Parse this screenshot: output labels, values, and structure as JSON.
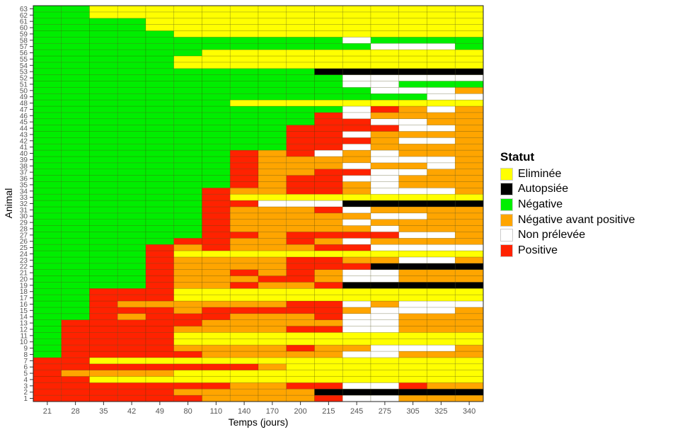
{
  "chart_data": {
    "type": "heatmap",
    "xlabel": "Temps (jours)",
    "ylabel": "Animal",
    "x": [
      "21",
      "28",
      "35",
      "42",
      "49",
      "80",
      "110",
      "140",
      "170",
      "200",
      "215",
      "245",
      "275",
      "305",
      "325",
      "340"
    ],
    "y": [
      "1",
      "2",
      "3",
      "4",
      "5",
      "6",
      "7",
      "8",
      "9",
      "10",
      "11",
      "12",
      "13",
      "14",
      "15",
      "16",
      "17",
      "18",
      "19",
      "20",
      "21",
      "22",
      "23",
      "24",
      "25",
      "26",
      "27",
      "28",
      "29",
      "30",
      "31",
      "32",
      "33",
      "34",
      "35",
      "36",
      "37",
      "38",
      "39",
      "40",
      "41",
      "42",
      "43",
      "44",
      "45",
      "46",
      "47",
      "48",
      "49",
      "50",
      "51",
      "52",
      "53",
      "54",
      "55",
      "56",
      "57",
      "58",
      "59",
      "60",
      "61",
      "62",
      "63"
    ],
    "legend": {
      "title": "Statut",
      "position": "right",
      "levels": [
        {
          "label": "Eliminée",
          "color": "#FFFF00"
        },
        {
          "label": "Autopsiée",
          "color": "#000000"
        },
        {
          "label": "Négative",
          "color": "#00EE00"
        },
        {
          "label": "Négative avant positive",
          "color": "#FFA500"
        },
        {
          "label": "Non prélevée",
          "color": "#FFFFFF"
        },
        {
          "label": "Positive",
          "color": "#FF2200"
        }
      ]
    },
    "z": [
      [
        5,
        5,
        5,
        5,
        5,
        5,
        3,
        3,
        3,
        3,
        5,
        4,
        4,
        3,
        3,
        3
      ],
      [
        5,
        5,
        5,
        5,
        5,
        3,
        3,
        3,
        3,
        3,
        1,
        1,
        1,
        1,
        1,
        1
      ],
      [
        5,
        5,
        5,
        5,
        5,
        5,
        5,
        3,
        3,
        5,
        5,
        4,
        4,
        5,
        3,
        3
      ],
      [
        5,
        5,
        0,
        0,
        0,
        0,
        0,
        0,
        0,
        0,
        0,
        0,
        0,
        0,
        0,
        0
      ],
      [
        5,
        3,
        3,
        3,
        3,
        0,
        0,
        0,
        0,
        0,
        0,
        0,
        0,
        0,
        0,
        0
      ],
      [
        5,
        5,
        5,
        5,
        5,
        5,
        5,
        5,
        3,
        0,
        0,
        0,
        0,
        0,
        0,
        0
      ],
      [
        5,
        5,
        0,
        0,
        0,
        0,
        0,
        0,
        0,
        0,
        0,
        0,
        0,
        0,
        0,
        0
      ],
      [
        2,
        5,
        5,
        5,
        5,
        5,
        3,
        3,
        3,
        3,
        3,
        4,
        4,
        3,
        3,
        3
      ],
      [
        2,
        5,
        5,
        5,
        5,
        3,
        3,
        3,
        3,
        5,
        3,
        3,
        4,
        4,
        4,
        3
      ],
      [
        2,
        5,
        5,
        5,
        5,
        0,
        0,
        0,
        0,
        0,
        0,
        0,
        0,
        0,
        0,
        0
      ],
      [
        2,
        5,
        5,
        5,
        5,
        0,
        0,
        0,
        0,
        0,
        0,
        0,
        0,
        0,
        0,
        0
      ],
      [
        2,
        5,
        5,
        5,
        5,
        3,
        3,
        3,
        3,
        5,
        5,
        4,
        4,
        3,
        3,
        3
      ],
      [
        2,
        5,
        5,
        5,
        5,
        5,
        3,
        3,
        3,
        3,
        3,
        4,
        4,
        3,
        3,
        3
      ],
      [
        2,
        2,
        5,
        3,
        5,
        5,
        5,
        3,
        3,
        3,
        5,
        4,
        4,
        3,
        3,
        3
      ],
      [
        2,
        2,
        5,
        5,
        5,
        3,
        5,
        5,
        5,
        5,
        5,
        3,
        4,
        4,
        4,
        3
      ],
      [
        2,
        2,
        5,
        3,
        3,
        3,
        3,
        3,
        3,
        5,
        5,
        4,
        3,
        4,
        4,
        4
      ],
      [
        2,
        2,
        5,
        5,
        5,
        0,
        0,
        0,
        0,
        0,
        0,
        0,
        0,
        0,
        0,
        0
      ],
      [
        2,
        2,
        5,
        5,
        5,
        0,
        0,
        0,
        0,
        0,
        0,
        0,
        0,
        0,
        0,
        0
      ],
      [
        2,
        2,
        2,
        2,
        5,
        3,
        3,
        5,
        3,
        3,
        5,
        1,
        1,
        1,
        1,
        1
      ],
      [
        2,
        2,
        2,
        2,
        5,
        3,
        3,
        3,
        5,
        5,
        3,
        4,
        4,
        3,
        3,
        3
      ],
      [
        2,
        2,
        2,
        2,
        5,
        3,
        3,
        5,
        3,
        5,
        3,
        4,
        4,
        3,
        3,
        3
      ],
      [
        2,
        2,
        2,
        2,
        5,
        3,
        3,
        3,
        3,
        5,
        5,
        5,
        1,
        1,
        1,
        1
      ],
      [
        2,
        2,
        2,
        2,
        5,
        3,
        3,
        3,
        3,
        5,
        5,
        3,
        3,
        4,
        4,
        3
      ],
      [
        2,
        2,
        2,
        2,
        5,
        0,
        0,
        0,
        0,
        0,
        0,
        0,
        0,
        0,
        0,
        0
      ],
      [
        2,
        2,
        2,
        2,
        5,
        3,
        5,
        3,
        3,
        3,
        5,
        5,
        4,
        4,
        4,
        4
      ],
      [
        2,
        2,
        2,
        2,
        2,
        5,
        5,
        3,
        3,
        5,
        3,
        4,
        3,
        3,
        3,
        3
      ],
      [
        2,
        2,
        2,
        2,
        2,
        2,
        5,
        5,
        3,
        5,
        5,
        5,
        5,
        4,
        4,
        3
      ],
      [
        2,
        2,
        2,
        2,
        2,
        2,
        5,
        3,
        3,
        3,
        3,
        3,
        4,
        3,
        3,
        3
      ],
      [
        2,
        2,
        2,
        2,
        2,
        2,
        5,
        3,
        3,
        3,
        3,
        4,
        3,
        3,
        3,
        3
      ],
      [
        2,
        2,
        2,
        2,
        2,
        2,
        5,
        3,
        3,
        3,
        3,
        3,
        4,
        4,
        3,
        3
      ],
      [
        2,
        2,
        2,
        2,
        2,
        2,
        5,
        3,
        3,
        3,
        5,
        4,
        3,
        3,
        3,
        3
      ],
      [
        2,
        2,
        2,
        2,
        2,
        2,
        5,
        5,
        4,
        4,
        4,
        1,
        1,
        1,
        1,
        1
      ],
      [
        2,
        2,
        2,
        2,
        2,
        2,
        5,
        0,
        0,
        0,
        0,
        0,
        0,
        0,
        0,
        0
      ],
      [
        2,
        2,
        2,
        2,
        2,
        2,
        5,
        3,
        3,
        5,
        5,
        3,
        4,
        4,
        4,
        3
      ],
      [
        2,
        2,
        2,
        2,
        2,
        2,
        2,
        5,
        3,
        5,
        5,
        3,
        4,
        3,
        3,
        3
      ],
      [
        2,
        2,
        2,
        2,
        2,
        2,
        2,
        5,
        3,
        5,
        5,
        4,
        4,
        3,
        3,
        3
      ],
      [
        2,
        2,
        2,
        2,
        2,
        2,
        2,
        5,
        3,
        3,
        5,
        5,
        4,
        4,
        3,
        3
      ],
      [
        2,
        2,
        2,
        2,
        2,
        2,
        2,
        5,
        3,
        3,
        3,
        4,
        3,
        3,
        4,
        3
      ],
      [
        2,
        2,
        2,
        2,
        2,
        2,
        2,
        5,
        3,
        3,
        3,
        3,
        4,
        4,
        4,
        3
      ],
      [
        2,
        2,
        2,
        2,
        2,
        2,
        2,
        5,
        3,
        5,
        4,
        3,
        4,
        3,
        3,
        3
      ],
      [
        2,
        2,
        2,
        2,
        2,
        2,
        2,
        2,
        2,
        5,
        5,
        4,
        3,
        3,
        3,
        3
      ],
      [
        2,
        2,
        2,
        2,
        2,
        2,
        2,
        2,
        2,
        5,
        5,
        5,
        3,
        4,
        4,
        3
      ],
      [
        2,
        2,
        2,
        2,
        2,
        2,
        2,
        2,
        2,
        5,
        5,
        4,
        3,
        3,
        3,
        3
      ],
      [
        2,
        2,
        2,
        2,
        2,
        2,
        2,
        2,
        2,
        5,
        5,
        5,
        5,
        4,
        4,
        3
      ],
      [
        2,
        2,
        2,
        2,
        2,
        2,
        2,
        2,
        2,
        2,
        5,
        5,
        4,
        4,
        3,
        3
      ],
      [
        2,
        2,
        2,
        2,
        2,
        2,
        2,
        2,
        2,
        2,
        5,
        4,
        3,
        3,
        3,
        3
      ],
      [
        2,
        2,
        2,
        2,
        2,
        2,
        2,
        2,
        2,
        2,
        2,
        4,
        5,
        3,
        4,
        3
      ],
      [
        2,
        2,
        2,
        2,
        2,
        2,
        2,
        0,
        0,
        0,
        0,
        0,
        0,
        0,
        0,
        0
      ],
      [
        2,
        2,
        2,
        2,
        2,
        2,
        2,
        2,
        2,
        2,
        2,
        2,
        2,
        2,
        4,
        4
      ],
      [
        2,
        2,
        2,
        2,
        2,
        2,
        2,
        2,
        2,
        2,
        2,
        2,
        4,
        4,
        4,
        3
      ],
      [
        2,
        2,
        2,
        2,
        2,
        2,
        2,
        2,
        2,
        2,
        2,
        4,
        4,
        2,
        2,
        2
      ],
      [
        2,
        2,
        2,
        2,
        2,
        2,
        2,
        2,
        2,
        2,
        2,
        4,
        4,
        4,
        4,
        4
      ],
      [
        2,
        2,
        2,
        2,
        2,
        2,
        2,
        2,
        2,
        2,
        1,
        1,
        1,
        1,
        1,
        1
      ],
      [
        2,
        2,
        2,
        2,
        2,
        0,
        0,
        0,
        0,
        0,
        0,
        0,
        0,
        0,
        0,
        0
      ],
      [
        2,
        2,
        2,
        2,
        2,
        0,
        0,
        0,
        0,
        0,
        0,
        0,
        0,
        0,
        0,
        0
      ],
      [
        2,
        2,
        2,
        2,
        2,
        2,
        0,
        0,
        0,
        0,
        0,
        0,
        0,
        0,
        0,
        0
      ],
      [
        2,
        2,
        2,
        2,
        2,
        2,
        2,
        2,
        2,
        2,
        2,
        2,
        4,
        4,
        4,
        2
      ],
      [
        2,
        2,
        2,
        2,
        2,
        2,
        2,
        2,
        2,
        2,
        2,
        4,
        2,
        2,
        2,
        2
      ],
      [
        2,
        2,
        2,
        2,
        2,
        0,
        0,
        0,
        0,
        0,
        0,
        0,
        0,
        0,
        0,
        0
      ],
      [
        2,
        2,
        2,
        2,
        0,
        0,
        0,
        0,
        0,
        0,
        0,
        0,
        0,
        0,
        0,
        0
      ],
      [
        2,
        2,
        2,
        2,
        0,
        0,
        0,
        0,
        0,
        0,
        0,
        0,
        0,
        0,
        0,
        0
      ],
      [
        2,
        2,
        0,
        0,
        0,
        0,
        0,
        0,
        0,
        0,
        0,
        0,
        0,
        0,
        0,
        0
      ],
      [
        2,
        2,
        0,
        0,
        0,
        0,
        0,
        0,
        0,
        0,
        0,
        0,
        0,
        0,
        0,
        0
      ]
    ]
  }
}
